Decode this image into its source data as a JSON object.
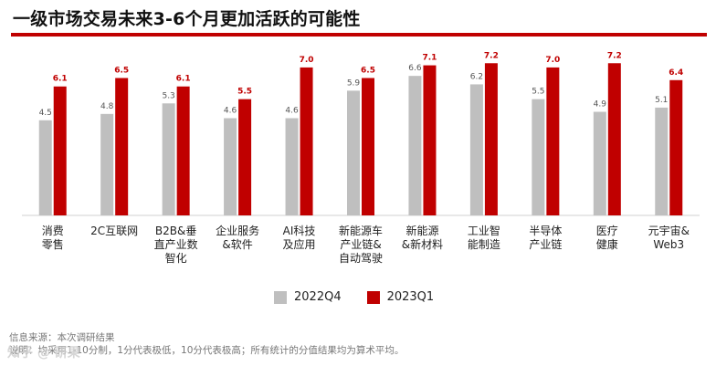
{
  "title": "一级市场交易未来3-6个月更加活跃的可能性",
  "legend": {
    "series_a": "2022Q4",
    "series_b": "2023Q1"
  },
  "notes": {
    "source": "信息来源：本次调研结果",
    "note": "说明：均采用1-10分制，1分代表极低，10分代表极高；所有统计的分值结果均为算术平均。"
  },
  "watermark": "知乎 @ 研果",
  "colors": {
    "series_a": "#bfbfbf",
    "series_b": "#c00000"
  },
  "chart_data": {
    "type": "bar",
    "title": "一级市场交易未来3-6个月更加活跃的可能性",
    "categories": [
      "消费\n零售",
      "2C互联网",
      "B2B&垂\n直产业数\n智化",
      "企业服务\n&软件",
      "AI科技\n及应用",
      "新能源车\n产业链&\n自动驾驶",
      "新能源\n&新材料",
      "工业智\n能制造",
      "半导体\n产业链",
      "医疗\n健康",
      "元宇宙&\nWeb3"
    ],
    "series": [
      {
        "name": "2022Q4",
        "values": [
          4.5,
          4.8,
          5.3,
          4.6,
          4.6,
          5.9,
          6.6,
          6.2,
          5.5,
          4.9,
          5.1
        ]
      },
      {
        "name": "2023Q1",
        "values": [
          6.1,
          6.5,
          6.1,
          5.5,
          7.0,
          6.5,
          7.1,
          7.2,
          7.0,
          7.2,
          6.4
        ]
      }
    ],
    "ylim": [
      0,
      7.6
    ],
    "grid": false,
    "legend_position": "bottom"
  }
}
